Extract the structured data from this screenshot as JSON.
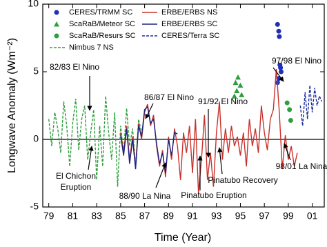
{
  "chart_data": {
    "type": "line",
    "x_label": "Time (Year)",
    "y_label": "Longwave Anomaly (Wm⁻²)",
    "xlim": [
      78.5,
      102
    ],
    "xticks": [
      79,
      81,
      83,
      85,
      87,
      89,
      91,
      93,
      95,
      97,
      99,
      {
        "value": 101,
        "label": "01"
      }
    ],
    "ylim": [
      -5,
      10
    ],
    "yticks": [
      -5,
      0,
      5,
      10
    ],
    "annotations": [
      "82/83 El Nino",
      "86/87 El Nino",
      "91/92 El Nino",
      "97/98 El Nino",
      "El Chichon",
      "Eruption",
      "88/90 La Nina",
      "Pinatubo Eruption",
      "Pinatubo Recovery",
      "98/01 La Nina"
    ],
    "series": [
      {
        "name": "CERES/TRMM SC",
        "color": "#1f2fb8",
        "mode": "scatter",
        "marker": "circle",
        "x": [
          98.1,
          98.2,
          98.25,
          98.3,
          98.35,
          98.1,
          98.4,
          98.2
        ],
        "values": [
          8.5,
          8.0,
          7.6,
          5.5,
          5.3,
          4.2,
          5.0,
          4.5
        ]
      },
      {
        "name": "ScaRaB/Meteor SC",
        "color": "#2e9e3e",
        "mode": "scatter",
        "marker": "triangle",
        "x": [
          94.6,
          94.8,
          95.0,
          94.7,
          95.1,
          94.5
        ],
        "values": [
          4.2,
          4.6,
          4.0,
          3.6,
          3.3,
          3.2
        ]
      },
      {
        "name": "ScaRaB/Resurs SC",
        "color": "#2e9e3e",
        "mode": "scatter",
        "marker": "circle",
        "x": [
          98.9,
          99.1,
          99.2
        ],
        "values": [
          2.7,
          2.2,
          1.4
        ]
      },
      {
        "name": "Nimbus 7 NS",
        "color": "#2e9e3e",
        "mode": "line",
        "dashed": true,
        "x": [
          79.0,
          79.25,
          79.5,
          79.75,
          80.0,
          80.25,
          80.5,
          80.75,
          81.0,
          81.25,
          81.5,
          81.75,
          82.0,
          82.25,
          82.5,
          82.75,
          83.0,
          83.25,
          83.5,
          83.75,
          84.0,
          84.25,
          84.5,
          84.75,
          85.0,
          85.25,
          85.5,
          85.75,
          86.0,
          86.25,
          86.5,
          86.75
        ],
        "values": [
          1.5,
          -0.5,
          2.0,
          0.8,
          -1.0,
          2.8,
          1.0,
          -2.0,
          1.2,
          3.0,
          -0.8,
          1.5,
          2.5,
          -1.5,
          0.5,
          2.2,
          -3.0,
          1.0,
          -2.0,
          3.2,
          0.5,
          -1.5,
          2.0,
          -3.5,
          1.0,
          -1.0,
          2.3,
          -0.5,
          0.8,
          -2.0,
          1.5,
          0.5
        ]
      },
      {
        "name": "ERBE/ERBS NS",
        "color": "#c8302a",
        "mode": "line",
        "dashed": false,
        "x": [
          85.0,
          85.25,
          85.5,
          85.75,
          86.0,
          86.25,
          86.5,
          86.75,
          87.0,
          87.25,
          87.5,
          87.75,
          88.0,
          88.25,
          88.5,
          88.75,
          89.0,
          89.25,
          89.5,
          89.75,
          90.0,
          90.25,
          90.5,
          90.75,
          91.0,
          91.25,
          91.5,
          91.75,
          92.0,
          92.25,
          92.5,
          92.75,
          93.0,
          93.25,
          93.5,
          93.75,
          94.0,
          94.25,
          94.5,
          94.75,
          95.0,
          95.25,
          95.5,
          95.75,
          96.0,
          96.25,
          96.5,
          96.75,
          97.0,
          97.25,
          97.5,
          97.75,
          98.0,
          98.25,
          98.5,
          98.75,
          99.0,
          99.25,
          99.5,
          99.75
        ],
        "values": [
          0.5,
          -1.0,
          1.0,
          -1.5,
          0.2,
          -2.0,
          1.2,
          0.0,
          2.0,
          2.6,
          1.0,
          1.8,
          -0.5,
          -2.0,
          -0.8,
          -2.8,
          0.2,
          -1.5,
          0.8,
          -0.5,
          -3.0,
          0.5,
          -1.0,
          1.0,
          -2.5,
          1.5,
          -4.0,
          -1.5,
          1.8,
          -3.0,
          -1.0,
          -3.5,
          0.5,
          2.8,
          -1.5,
          0.8,
          -1.0,
          1.0,
          -0.5,
          0.2,
          -1.2,
          0.5,
          -2.0,
          1.5,
          -0.5,
          0.8,
          -1.0,
          2.5,
          0.5,
          -0.8,
          1.5,
          2.2,
          5.2,
          2.0,
          -2.2,
          0.3,
          -1.5,
          -0.5,
          -2.0,
          -1.0
        ]
      },
      {
        "name": "ERBE/ERBS SC",
        "color": "#1a237e",
        "mode": "line",
        "dashed": false,
        "x": [
          85.0,
          85.25,
          85.5,
          85.75,
          86.0,
          86.25,
          86.5,
          86.75,
          87.0,
          87.25,
          87.5,
          87.75,
          88.0,
          88.25,
          88.5,
          88.75,
          89.0,
          89.25,
          89.5,
          89.75
        ],
        "values": [
          0.3,
          -1.2,
          0.8,
          -1.8,
          0.0,
          -2.2,
          1.0,
          0.2,
          2.2,
          2.4,
          1.2,
          1.5,
          -0.3,
          -1.8,
          -1.0,
          -2.5,
          0.0,
          -1.2,
          0.5,
          0.4
        ]
      },
      {
        "name": "CERES/Terra SC",
        "color": "#1a2a9a",
        "mode": "line",
        "dashed": true,
        "x": [
          100.0,
          100.2,
          100.4,
          100.6,
          100.8,
          101.0,
          101.2,
          101.4,
          101.6,
          101.8
        ],
        "values": [
          2.5,
          1.0,
          3.5,
          1.5,
          4.0,
          2.0,
          3.8,
          2.5,
          3.2,
          2.8
        ]
      }
    ]
  }
}
